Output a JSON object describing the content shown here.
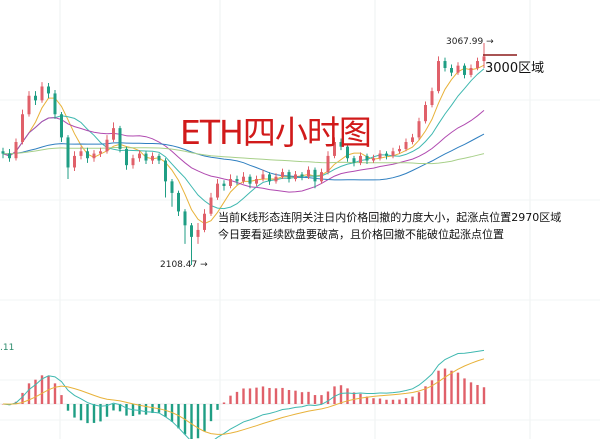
{
  "chart_data": {
    "type": "candlestick",
    "title": "ETH四小时图",
    "colors": {
      "up": "#e0606a",
      "down": "#1f9e84",
      "title": "#d11a1a",
      "zone_line": "#8b1a1a"
    },
    "ma_line_colors": [
      "#e8b23a",
      "#3fb8b0",
      "#b04ab0",
      "#2f7fc0",
      "#a8d08a"
    ],
    "macd_colors": {
      "dif": "#3fb8b0",
      "dea": "#e8b23a"
    },
    "ylim": [
      2108.47,
      3067.99
    ],
    "candles": [
      [
        2600,
        2615,
        2570,
        2590
      ],
      [
        2590,
        2610,
        2555,
        2570
      ],
      [
        2570,
        2655,
        2560,
        2640
      ],
      [
        2640,
        2780,
        2630,
        2760
      ],
      [
        2760,
        2860,
        2750,
        2840
      ],
      [
        2840,
        2860,
        2800,
        2820
      ],
      [
        2820,
        2899,
        2810,
        2880
      ],
      [
        2880,
        2895,
        2830,
        2850
      ],
      [
        2850,
        2865,
        2740,
        2760
      ],
      [
        2760,
        2770,
        2640,
        2660
      ],
      [
        2660,
        2670,
        2480,
        2530
      ],
      [
        2530,
        2600,
        2515,
        2580
      ],
      [
        2580,
        2620,
        2565,
        2600
      ],
      [
        2600,
        2615,
        2550,
        2570
      ],
      [
        2570,
        2605,
        2555,
        2590
      ],
      [
        2590,
        2615,
        2575,
        2600
      ],
      [
        2600,
        2670,
        2590,
        2650
      ],
      [
        2650,
        2725,
        2640,
        2700
      ],
      [
        2700,
        2710,
        2595,
        2610
      ],
      [
        2610,
        2620,
        2520,
        2540
      ],
      [
        2540,
        2585,
        2525,
        2570
      ],
      [
        2570,
        2605,
        2555,
        2590
      ],
      [
        2590,
        2600,
        2545,
        2560
      ],
      [
        2560,
        2595,
        2545,
        2580
      ],
      [
        2580,
        2590,
        2545,
        2560
      ],
      [
        2560,
        2570,
        2400,
        2470
      ],
      [
        2470,
        2480,
        2360,
        2420
      ],
      [
        2420,
        2430,
        2320,
        2340
      ],
      [
        2340,
        2350,
        2200,
        2280
      ],
      [
        2280,
        2290,
        2108.47,
        2230
      ],
      [
        2230,
        2290,
        2200,
        2260
      ],
      [
        2260,
        2350,
        2250,
        2330
      ],
      [
        2330,
        2420,
        2320,
        2400
      ],
      [
        2400,
        2480,
        2390,
        2460
      ],
      [
        2460,
        2475,
        2430,
        2450
      ],
      [
        2450,
        2500,
        2440,
        2480
      ],
      [
        2480,
        2495,
        2455,
        2470
      ],
      [
        2470,
        2510,
        2460,
        2490
      ],
      [
        2490,
        2500,
        2440,
        2460
      ],
      [
        2460,
        2495,
        2450,
        2480
      ],
      [
        2480,
        2520,
        2470,
        2500
      ],
      [
        2500,
        2510,
        2455,
        2470
      ],
      [
        2470,
        2505,
        2460,
        2490
      ],
      [
        2490,
        2525,
        2480,
        2510
      ],
      [
        2510,
        2520,
        2465,
        2480
      ],
      [
        2480,
        2515,
        2470,
        2500
      ],
      [
        2500,
        2510,
        2475,
        2490
      ],
      [
        2490,
        2535,
        2480,
        2520
      ],
      [
        2520,
        2530,
        2440,
        2470
      ],
      [
        2470,
        2525,
        2460,
        2510
      ],
      [
        2510,
        2600,
        2500,
        2580
      ],
      [
        2580,
        2660,
        2570,
        2640
      ],
      [
        2640,
        2655,
        2605,
        2620
      ],
      [
        2620,
        2630,
        2555,
        2570
      ],
      [
        2570,
        2580,
        2535,
        2550
      ],
      [
        2550,
        2595,
        2540,
        2580
      ],
      [
        2580,
        2590,
        2545,
        2560
      ],
      [
        2560,
        2585,
        2550,
        2570
      ],
      [
        2570,
        2605,
        2560,
        2590
      ],
      [
        2590,
        2600,
        2565,
        2580
      ],
      [
        2580,
        2615,
        2570,
        2600
      ],
      [
        2600,
        2625,
        2590,
        2610
      ],
      [
        2610,
        2655,
        2600,
        2640
      ],
      [
        2640,
        2675,
        2630,
        2660
      ],
      [
        2660,
        2745,
        2650,
        2730
      ],
      [
        2730,
        2815,
        2720,
        2800
      ],
      [
        2800,
        2875,
        2790,
        2860
      ],
      [
        2860,
        3010,
        2850,
        2990
      ],
      [
        2990,
        3005,
        2945,
        2960
      ],
      [
        2960,
        2975,
        2925,
        2940
      ],
      [
        2940,
        2985,
        2930,
        2970
      ],
      [
        2970,
        2980,
        2915,
        2930
      ],
      [
        2930,
        2975,
        2920,
        2960
      ],
      [
        2960,
        3005,
        2950,
        2990
      ],
      [
        2990,
        3067.99,
        2960,
        3010
      ]
    ],
    "annotations": {
      "high_label": "3067.99",
      "low_label": "2108.47",
      "zone_label": "3000区域",
      "note_line1": "当前K线形态连阴关注日内价格回撤的力度大小，起涨点位置2970区域",
      "note_line2": "今日要看延续欧盘要破高，且价格回撤不能破位起涨点位置"
    },
    "macd_label": ".11"
  }
}
